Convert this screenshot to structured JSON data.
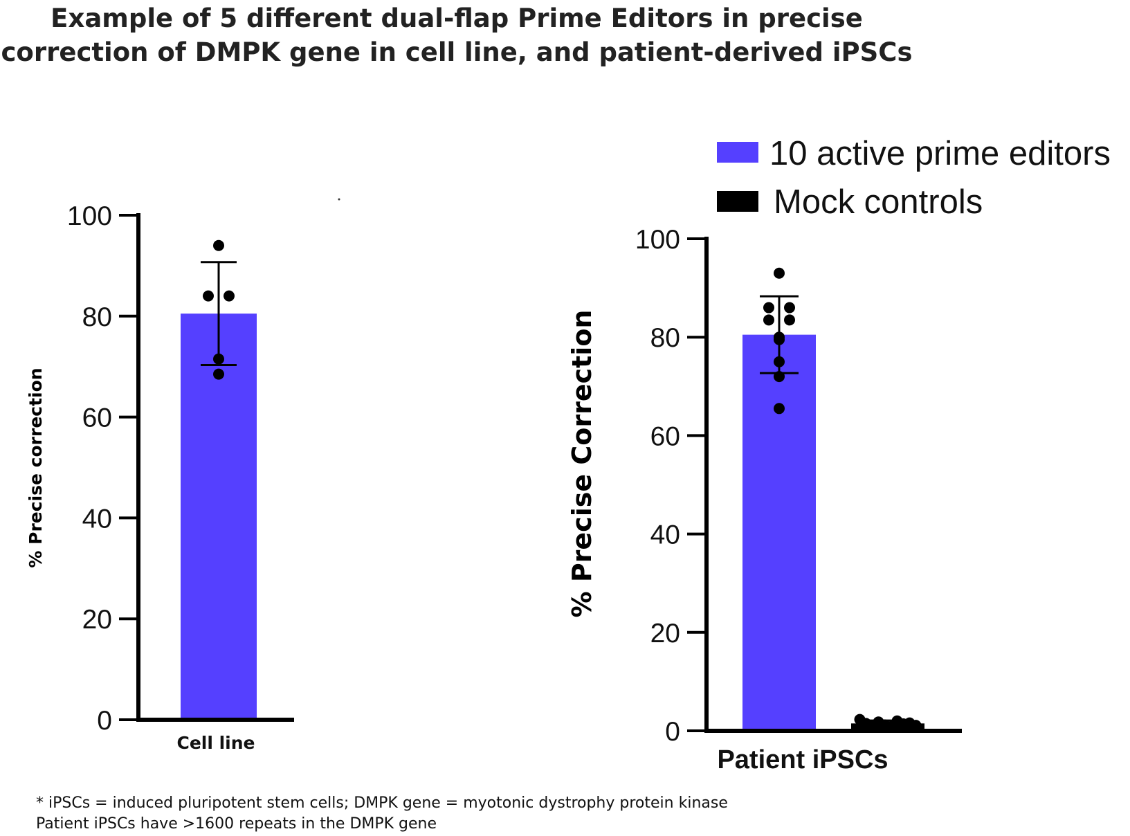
{
  "figure": {
    "title": "Example of 5 different dual-flap Prime Editors in precise correction of DMPK gene in cell line, and patient-derived iPSCs",
    "footnotes": [
      "* iPSCs = induced pluripotent stem cells; DMPK gene = myotonic dystrophy protein kinase",
      "Patient iPSCs have >1600 repeats in the DMPK gene"
    ],
    "colors": {
      "active": "#5540ff",
      "mock": "#000000",
      "axis": "#000000"
    }
  },
  "chart_data": [
    {
      "type": "bar",
      "title": "",
      "ylabel": "% Precise correction",
      "xlabel": "",
      "ylim": [
        0,
        100
      ],
      "yticks": [
        "0",
        "20",
        "40",
        "60",
        "80",
        "100"
      ],
      "categories": [
        "Cell line"
      ],
      "series": [
        {
          "name": "10 active prime editors",
          "values": [
            80.5
          ],
          "error": [
            10.2
          ],
          "points": [
            94,
            84,
            84,
            71.5,
            68.5
          ]
        }
      ]
    },
    {
      "type": "bar",
      "title": "",
      "ylabel": "% Precise Correction",
      "xlabel": "",
      "ylim": [
        0,
        100
      ],
      "yticks": [
        "0",
        "20",
        "40",
        "60",
        "80",
        "100"
      ],
      "categories": [
        "Patient iPSCs"
      ],
      "legend": {
        "position": "top-right",
        "entries": [
          "10 active prime editors",
          "Mock controls"
        ]
      },
      "series": [
        {
          "name": "10 active prime editors",
          "values": [
            80.5
          ],
          "error": [
            7.8
          ],
          "points": [
            93,
            86,
            86,
            83.5,
            83.5,
            80,
            79.5,
            75,
            72,
            65.5
          ]
        },
        {
          "name": "Mock controls",
          "values": [
            1.5
          ],
          "error": [
            0.6
          ],
          "points": [
            2.3,
            1.5,
            1.0,
            1.8,
            1.2,
            0.8,
            2.0,
            1.4,
            1.6,
            1.1
          ]
        }
      ]
    }
  ]
}
